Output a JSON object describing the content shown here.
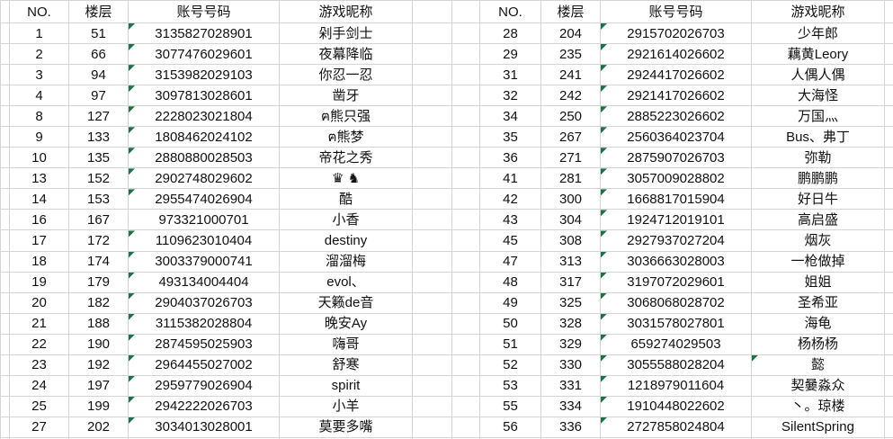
{
  "colors": {
    "gridline": "#d4d4d4",
    "error_flag_green": "#1e7145",
    "text": "#111111",
    "background": "#ffffff"
  },
  "left_table": {
    "header": {
      "no": "NO.",
      "floor": "楼层",
      "account": "账号号码",
      "nickname": "游戏昵称"
    },
    "rows": [
      {
        "no": "1",
        "floor": "51",
        "account": "3135827028901",
        "nickname": "剁手剑士",
        "account_flag": true,
        "nickname_flag": false
      },
      {
        "no": "2",
        "floor": "66",
        "account": "3077476029601",
        "nickname": "夜幕降临",
        "account_flag": true,
        "nickname_flag": false
      },
      {
        "no": "3",
        "floor": "94",
        "account": "3153982029103",
        "nickname": "你忍一忍",
        "account_flag": true,
        "nickname_flag": false
      },
      {
        "no": "4",
        "floor": "97",
        "account": "3097813028601",
        "nickname": "凿牙",
        "account_flag": true,
        "nickname_flag": false
      },
      {
        "no": "8",
        "floor": "127",
        "account": "2228023021804",
        "nickname": "ฅ熊只强",
        "account_flag": true,
        "nickname_flag": false
      },
      {
        "no": "9",
        "floor": "133",
        "account": "1808462024102",
        "nickname": "ฅ熊梦",
        "account_flag": true,
        "nickname_flag": false
      },
      {
        "no": "10",
        "floor": "135",
        "account": "2880880028503",
        "nickname": "帝花之秀",
        "account_flag": true,
        "nickname_flag": false
      },
      {
        "no": "13",
        "floor": "152",
        "account": "2902748029602",
        "nickname": "♛ ♞",
        "account_flag": true,
        "nickname_flag": false
      },
      {
        "no": "14",
        "floor": "153",
        "account": "2955474026904",
        "nickname": "酷",
        "account_flag": true,
        "nickname_flag": false
      },
      {
        "no": "16",
        "floor": "167",
        "account": "973321000701",
        "nickname": "小香",
        "account_flag": false,
        "nickname_flag": false
      },
      {
        "no": "17",
        "floor": "172",
        "account": "1109623010404",
        "nickname": "destiny",
        "account_flag": true,
        "nickname_flag": false
      },
      {
        "no": "18",
        "floor": "174",
        "account": "3003379000741",
        "nickname": "溜溜梅",
        "account_flag": true,
        "nickname_flag": false
      },
      {
        "no": "19",
        "floor": "179",
        "account": "493134004404",
        "nickname": "evol、",
        "account_flag": true,
        "nickname_flag": false
      },
      {
        "no": "20",
        "floor": "182",
        "account": "2904037026703",
        "nickname": "天籁de音",
        "account_flag": true,
        "nickname_flag": false
      },
      {
        "no": "21",
        "floor": "188",
        "account": "3115382028804",
        "nickname": "晚安Ay",
        "account_flag": true,
        "nickname_flag": false
      },
      {
        "no": "22",
        "floor": "190",
        "account": "2874595025903",
        "nickname": "嗨哥",
        "account_flag": true,
        "nickname_flag": false
      },
      {
        "no": "23",
        "floor": "192",
        "account": "2964455027002",
        "nickname": "舒寒",
        "account_flag": true,
        "nickname_flag": false
      },
      {
        "no": "24",
        "floor": "197",
        "account": "2959779026904",
        "nickname": "spirit",
        "account_flag": true,
        "nickname_flag": false
      },
      {
        "no": "25",
        "floor": "199",
        "account": "2942222026703",
        "nickname": "小羊",
        "account_flag": true,
        "nickname_flag": false
      },
      {
        "no": "27",
        "floor": "202",
        "account": "3034013028001",
        "nickname": "莫要多嘴",
        "account_flag": true,
        "nickname_flag": false
      }
    ]
  },
  "right_table": {
    "header": {
      "no": "NO.",
      "floor": "楼层",
      "account": "账号号码",
      "nickname": "游戏昵称"
    },
    "rows": [
      {
        "no": "28",
        "floor": "204",
        "account": "2915702026703",
        "nickname": "少年郎",
        "account_flag": true,
        "nickname_flag": false
      },
      {
        "no": "29",
        "floor": "235",
        "account": "2921614026602",
        "nickname": "藕黄Leory",
        "account_flag": true,
        "nickname_flag": false
      },
      {
        "no": "31",
        "floor": "241",
        "account": "2924417026602",
        "nickname": "人偶人偶",
        "account_flag": true,
        "nickname_flag": false
      },
      {
        "no": "32",
        "floor": "242",
        "account": "2921417026602",
        "nickname": "大海怪",
        "account_flag": true,
        "nickname_flag": false
      },
      {
        "no": "34",
        "floor": "250",
        "account": "2885223026602",
        "nickname": "万国灬",
        "account_flag": true,
        "nickname_flag": false
      },
      {
        "no": "35",
        "floor": "267",
        "account": "2560364023704",
        "nickname": "Bus、弗丁",
        "account_flag": true,
        "nickname_flag": false
      },
      {
        "no": "36",
        "floor": "271",
        "account": "2875907026703",
        "nickname": "弥勒",
        "account_flag": true,
        "nickname_flag": false
      },
      {
        "no": "41",
        "floor": "281",
        "account": "3057009028802",
        "nickname": "鹏鹏鹏",
        "account_flag": true,
        "nickname_flag": false
      },
      {
        "no": "42",
        "floor": "300",
        "account": "1668817015904",
        "nickname": "好日牛",
        "account_flag": true,
        "nickname_flag": false
      },
      {
        "no": "43",
        "floor": "304",
        "account": "1924712019101",
        "nickname": "高启盛",
        "account_flag": true,
        "nickname_flag": false
      },
      {
        "no": "45",
        "floor": "308",
        "account": "2927937027204",
        "nickname": "烟灰",
        "account_flag": true,
        "nickname_flag": false
      },
      {
        "no": "47",
        "floor": "313",
        "account": "3036663028003",
        "nickname": "一枪做掉",
        "account_flag": true,
        "nickname_flag": false
      },
      {
        "no": "48",
        "floor": "317",
        "account": "3197072029601",
        "nickname": "姐姐",
        "account_flag": true,
        "nickname_flag": false
      },
      {
        "no": "49",
        "floor": "325",
        "account": "3068068028702",
        "nickname": "圣希亚",
        "account_flag": true,
        "nickname_flag": false
      },
      {
        "no": "50",
        "floor": "328",
        "account": "3031578027801",
        "nickname": "海龟",
        "account_flag": true,
        "nickname_flag": false
      },
      {
        "no": "51",
        "floor": "329",
        "account": "659274029503",
        "nickname": "杨杨杨",
        "account_flag": true,
        "nickname_flag": false
      },
      {
        "no": "52",
        "floor": "330",
        "account": "3055588028204",
        "nickname": "懿",
        "account_flag": true,
        "nickname_flag": true
      },
      {
        "no": "53",
        "floor": "331",
        "account": "1218979011604",
        "nickname": "契嘦淼众",
        "account_flag": true,
        "nickname_flag": false
      },
      {
        "no": "55",
        "floor": "334",
        "account": "1910448022602",
        "nickname": "丶。琼楼",
        "account_flag": true,
        "nickname_flag": false
      },
      {
        "no": "56",
        "floor": "336",
        "account": "2727858024804",
        "nickname": "SilentSpring",
        "account_flag": true,
        "nickname_flag": false
      }
    ]
  }
}
